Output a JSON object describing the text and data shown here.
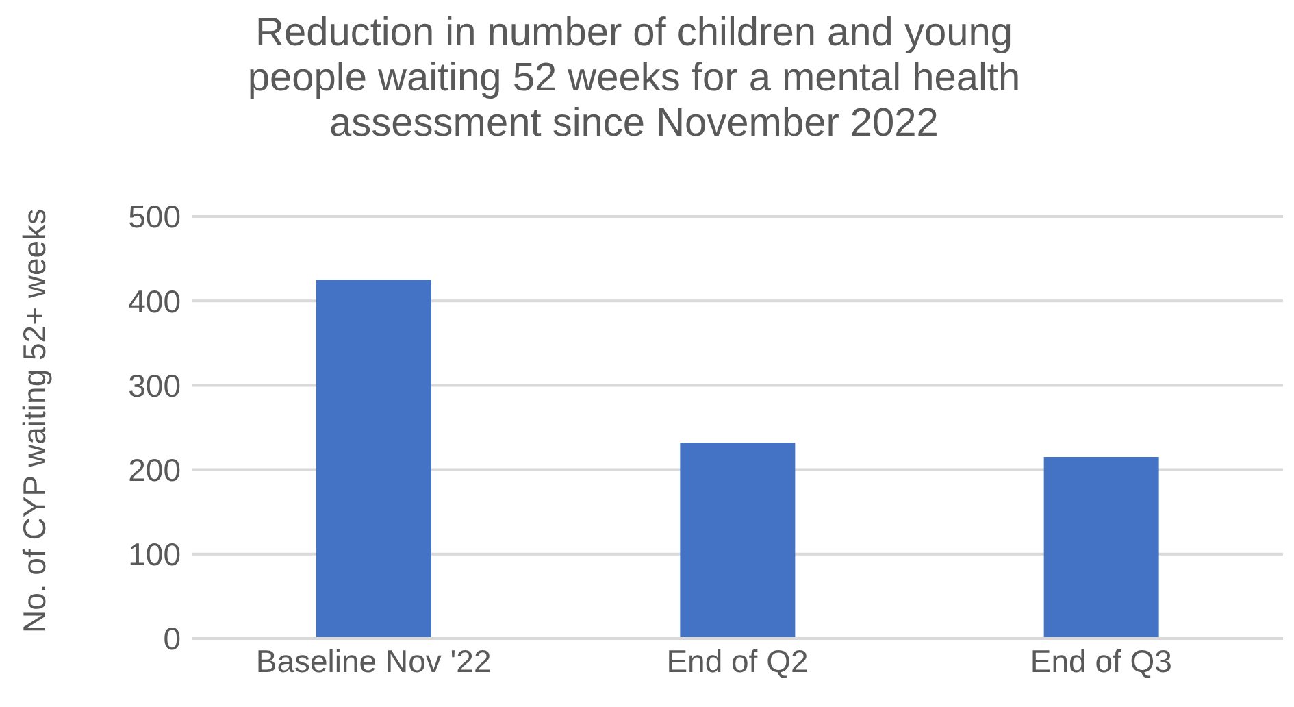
{
  "chart_data": {
    "type": "bar",
    "title": "Reduction in number of children and young people waiting 52 weeks for a mental health assessment since November 2022",
    "ylabel": "No. of CYP waiting 52+ weeks",
    "categories": [
      "Baseline Nov '22",
      "End of Q2",
      "End of Q3"
    ],
    "values": [
      425,
      232,
      215
    ],
    "color": "#4472c4",
    "ylim": [
      0,
      500
    ],
    "yticks": [
      0,
      100,
      200,
      300,
      400,
      500
    ],
    "grid": "y"
  }
}
